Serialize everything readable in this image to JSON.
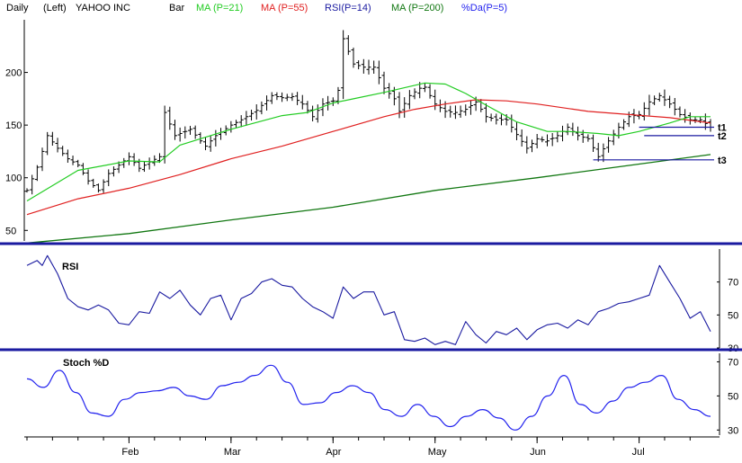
{
  "header": {
    "items": [
      {
        "text": "Daily",
        "color": "#000000"
      },
      {
        "text": "(Left)",
        "color": "#000000"
      },
      {
        "text": "YAHOO INC",
        "color": "#000000"
      },
      {
        "text": "Bar",
        "color": "#000000"
      },
      {
        "text": "MA (P=21)",
        "color": "#22cc22"
      },
      {
        "text": "MA (P=55)",
        "color": "#e02020"
      },
      {
        "text": "RSI(P=14)",
        "color": "#1a1aa0"
      },
      {
        "text": "MA (P=200)",
        "color": "#117711"
      },
      {
        "text": "%Da(P=5)",
        "color": "#2222ee"
      }
    ]
  },
  "chart_data": [
    {
      "type": "bar",
      "ylim": [
        40,
        250
      ],
      "yticks": [
        50,
        100,
        150,
        200
      ],
      "months": [
        "Feb",
        "Mar",
        "Apr",
        "May",
        "Jun",
        "Jul"
      ],
      "month_days": [
        20,
        40,
        60,
        80,
        100,
        120
      ],
      "n_days": 135,
      "ohlc_keypoints": [
        [
          0,
          88
        ],
        [
          2,
          110
        ],
        [
          4,
          140
        ],
        [
          6,
          128
        ],
        [
          8,
          118
        ],
        [
          10,
          112
        ],
        [
          12,
          97
        ],
        [
          14,
          88
        ],
        [
          16,
          104
        ],
        [
          18,
          112
        ],
        [
          20,
          120
        ],
        [
          22,
          109
        ],
        [
          24,
          115
        ],
        [
          26,
          120
        ],
        [
          27,
          162
        ],
        [
          29,
          140
        ],
        [
          32,
          146
        ],
        [
          34,
          135
        ],
        [
          35,
          130
        ],
        [
          37,
          140
        ],
        [
          40,
          150
        ],
        [
          42,
          155
        ],
        [
          45,
          164
        ],
        [
          48,
          178
        ],
        [
          50,
          176
        ],
        [
          52,
          177
        ],
        [
          54,
          170
        ],
        [
          56,
          158
        ],
        [
          58,
          170
        ],
        [
          60,
          173
        ],
        [
          61,
          183
        ],
        [
          62,
          232
        ],
        [
          64,
          208
        ],
        [
          66,
          205
        ],
        [
          68,
          205
        ],
        [
          70,
          185
        ],
        [
          72,
          175
        ],
        [
          73,
          163
        ],
        [
          75,
          178
        ],
        [
          77,
          185
        ],
        [
          78,
          186
        ],
        [
          80,
          170
        ],
        [
          82,
          163
        ],
        [
          84,
          162
        ],
        [
          86,
          165
        ],
        [
          88,
          172
        ],
        [
          90,
          158
        ],
        [
          92,
          155
        ],
        [
          94,
          155
        ],
        [
          96,
          141
        ],
        [
          98,
          128
        ],
        [
          100,
          137
        ],
        [
          102,
          135
        ],
        [
          104,
          140
        ],
        [
          106,
          148
        ],
        [
          108,
          140
        ],
        [
          110,
          137
        ],
        [
          112,
          120
        ],
        [
          114,
          135
        ],
        [
          116,
          148
        ],
        [
          118,
          158
        ],
        [
          120,
          160
        ],
        [
          122,
          172
        ],
        [
          124,
          178
        ],
        [
          126,
          170
        ],
        [
          128,
          160
        ],
        [
          130,
          155
        ],
        [
          132,
          155
        ],
        [
          134,
          148
        ]
      ],
      "ma21": [
        [
          0,
          78
        ],
        [
          10,
          107
        ],
        [
          20,
          116
        ],
        [
          26,
          115
        ],
        [
          30,
          131
        ],
        [
          40,
          146
        ],
        [
          50,
          159
        ],
        [
          55,
          162
        ],
        [
          60,
          171
        ],
        [
          64,
          175
        ],
        [
          70,
          181
        ],
        [
          78,
          190
        ],
        [
          82,
          189
        ],
        [
          86,
          180
        ],
        [
          90,
          169
        ],
        [
          96,
          153
        ],
        [
          102,
          144
        ],
        [
          106,
          144
        ],
        [
          112,
          142
        ],
        [
          116,
          140
        ],
        [
          120,
          144
        ],
        [
          126,
          152
        ],
        [
          130,
          158
        ],
        [
          134,
          158
        ]
      ],
      "ma55": [
        [
          0,
          65
        ],
        [
          10,
          80
        ],
        [
          20,
          90
        ],
        [
          30,
          103
        ],
        [
          40,
          118
        ],
        [
          50,
          130
        ],
        [
          60,
          144
        ],
        [
          70,
          158
        ],
        [
          76,
          165
        ],
        [
          82,
          170
        ],
        [
          88,
          174
        ],
        [
          94,
          173
        ],
        [
          100,
          170
        ],
        [
          110,
          163
        ],
        [
          118,
          160
        ],
        [
          126,
          157
        ],
        [
          134,
          152
        ]
      ],
      "ma200": [
        [
          0,
          38
        ],
        [
          20,
          47
        ],
        [
          40,
          60
        ],
        [
          60,
          72
        ],
        [
          80,
          88
        ],
        [
          100,
          100
        ],
        [
          120,
          113
        ],
        [
          134,
          122
        ]
      ],
      "trendlines": [
        {
          "label": "t1",
          "x0": 120,
          "x1": 134,
          "y0": 148,
          "y1": 148
        },
        {
          "label": "t2",
          "x0": 121,
          "x1": 134,
          "y0": 140,
          "y1": 140
        },
        {
          "label": "t3",
          "x0": 111,
          "x1": 134,
          "y0": 117,
          "y1": 117
        }
      ]
    },
    {
      "type": "line",
      "title": "RSI",
      "ylim": [
        30,
        90
      ],
      "yticks": [
        30,
        50,
        70
      ],
      "series": [
        {
          "values": [
            [
              0,
              80
            ],
            [
              2,
              83
            ],
            [
              3,
              80
            ],
            [
              4,
              86
            ],
            [
              6,
              75
            ],
            [
              8,
              60
            ],
            [
              10,
              55
            ],
            [
              12,
              53
            ],
            [
              14,
              56
            ],
            [
              16,
              53
            ],
            [
              18,
              45
            ],
            [
              20,
              44
            ],
            [
              22,
              52
            ],
            [
              24,
              51
            ],
            [
              26,
              64
            ],
            [
              28,
              60
            ],
            [
              30,
              65
            ],
            [
              32,
              56
            ],
            [
              34,
              50
            ],
            [
              36,
              60
            ],
            [
              38,
              62
            ],
            [
              40,
              47
            ],
            [
              42,
              60
            ],
            [
              44,
              63
            ],
            [
              46,
              70
            ],
            [
              48,
              72
            ],
            [
              50,
              68
            ],
            [
              52,
              67
            ],
            [
              54,
              60
            ],
            [
              56,
              55
            ],
            [
              58,
              52
            ],
            [
              60,
              48
            ],
            [
              62,
              67
            ],
            [
              64,
              60
            ],
            [
              66,
              64
            ],
            [
              68,
              64
            ],
            [
              70,
              50
            ],
            [
              72,
              52
            ],
            [
              74,
              35
            ],
            [
              76,
              34
            ],
            [
              78,
              36
            ],
            [
              80,
              32
            ],
            [
              82,
              34
            ],
            [
              84,
              32
            ],
            [
              86,
              46
            ],
            [
              88,
              38
            ],
            [
              90,
              33
            ],
            [
              92,
              40
            ],
            [
              94,
              38
            ],
            [
              96,
              42
            ],
            [
              98,
              35
            ],
            [
              100,
              41
            ],
            [
              102,
              44
            ],
            [
              104,
              45
            ],
            [
              106,
              42
            ],
            [
              108,
              47
            ],
            [
              110,
              44
            ],
            [
              112,
              52
            ],
            [
              114,
              54
            ],
            [
              116,
              57
            ],
            [
              118,
              58
            ],
            [
              120,
              60
            ],
            [
              122,
              62
            ],
            [
              124,
              80
            ],
            [
              126,
              70
            ],
            [
              128,
              60
            ],
            [
              130,
              48
            ],
            [
              132,
              52
            ],
            [
              134,
              40
            ]
          ]
        }
      ]
    },
    {
      "type": "line",
      "title": "Stoch %D",
      "ylim": [
        27,
        75
      ],
      "yticks": [
        30,
        50,
        70
      ],
      "series": [
        {
          "values": [
            [
              0,
              60
            ],
            [
              4,
              55
            ],
            [
              8,
              65
            ],
            [
              12,
              52
            ],
            [
              16,
              40
            ],
            [
              20,
              38
            ],
            [
              24,
              48
            ],
            [
              28,
              52
            ],
            [
              32,
              53
            ],
            [
              36,
              55
            ],
            [
              40,
              50
            ],
            [
              44,
              48
            ],
            [
              48,
              56
            ],
            [
              52,
              58
            ],
            [
              56,
              62
            ],
            [
              60,
              68
            ],
            [
              64,
              58
            ],
            [
              68,
              45
            ],
            [
              72,
              46
            ],
            [
              76,
              52
            ],
            [
              80,
              56
            ],
            [
              84,
              52
            ],
            [
              88,
              42
            ],
            [
              92,
              38
            ],
            [
              96,
              45
            ],
            [
              100,
              38
            ],
            [
              104,
              32
            ],
            [
              108,
              38
            ],
            [
              112,
              42
            ],
            [
              116,
              37
            ],
            [
              120,
              30
            ],
            [
              124,
              38
            ],
            [
              128,
              50
            ],
            [
              132,
              62
            ],
            [
              136,
              45
            ],
            [
              140,
              40
            ],
            [
              144,
              47
            ],
            [
              148,
              55
            ],
            [
              152,
              58
            ],
            [
              156,
              62
            ],
            [
              160,
              48
            ],
            [
              164,
              42
            ],
            [
              168,
              38
            ]
          ]
        }
      ]
    }
  ],
  "colors": {
    "bars": "#000000",
    "ma21": "#22cc22",
    "ma55": "#e02020",
    "ma200": "#117711",
    "rsi": "#1a1aa0",
    "stoch": "#2222ee",
    "trendline": "#1a1aa0",
    "separator": "#1a1aa0"
  }
}
